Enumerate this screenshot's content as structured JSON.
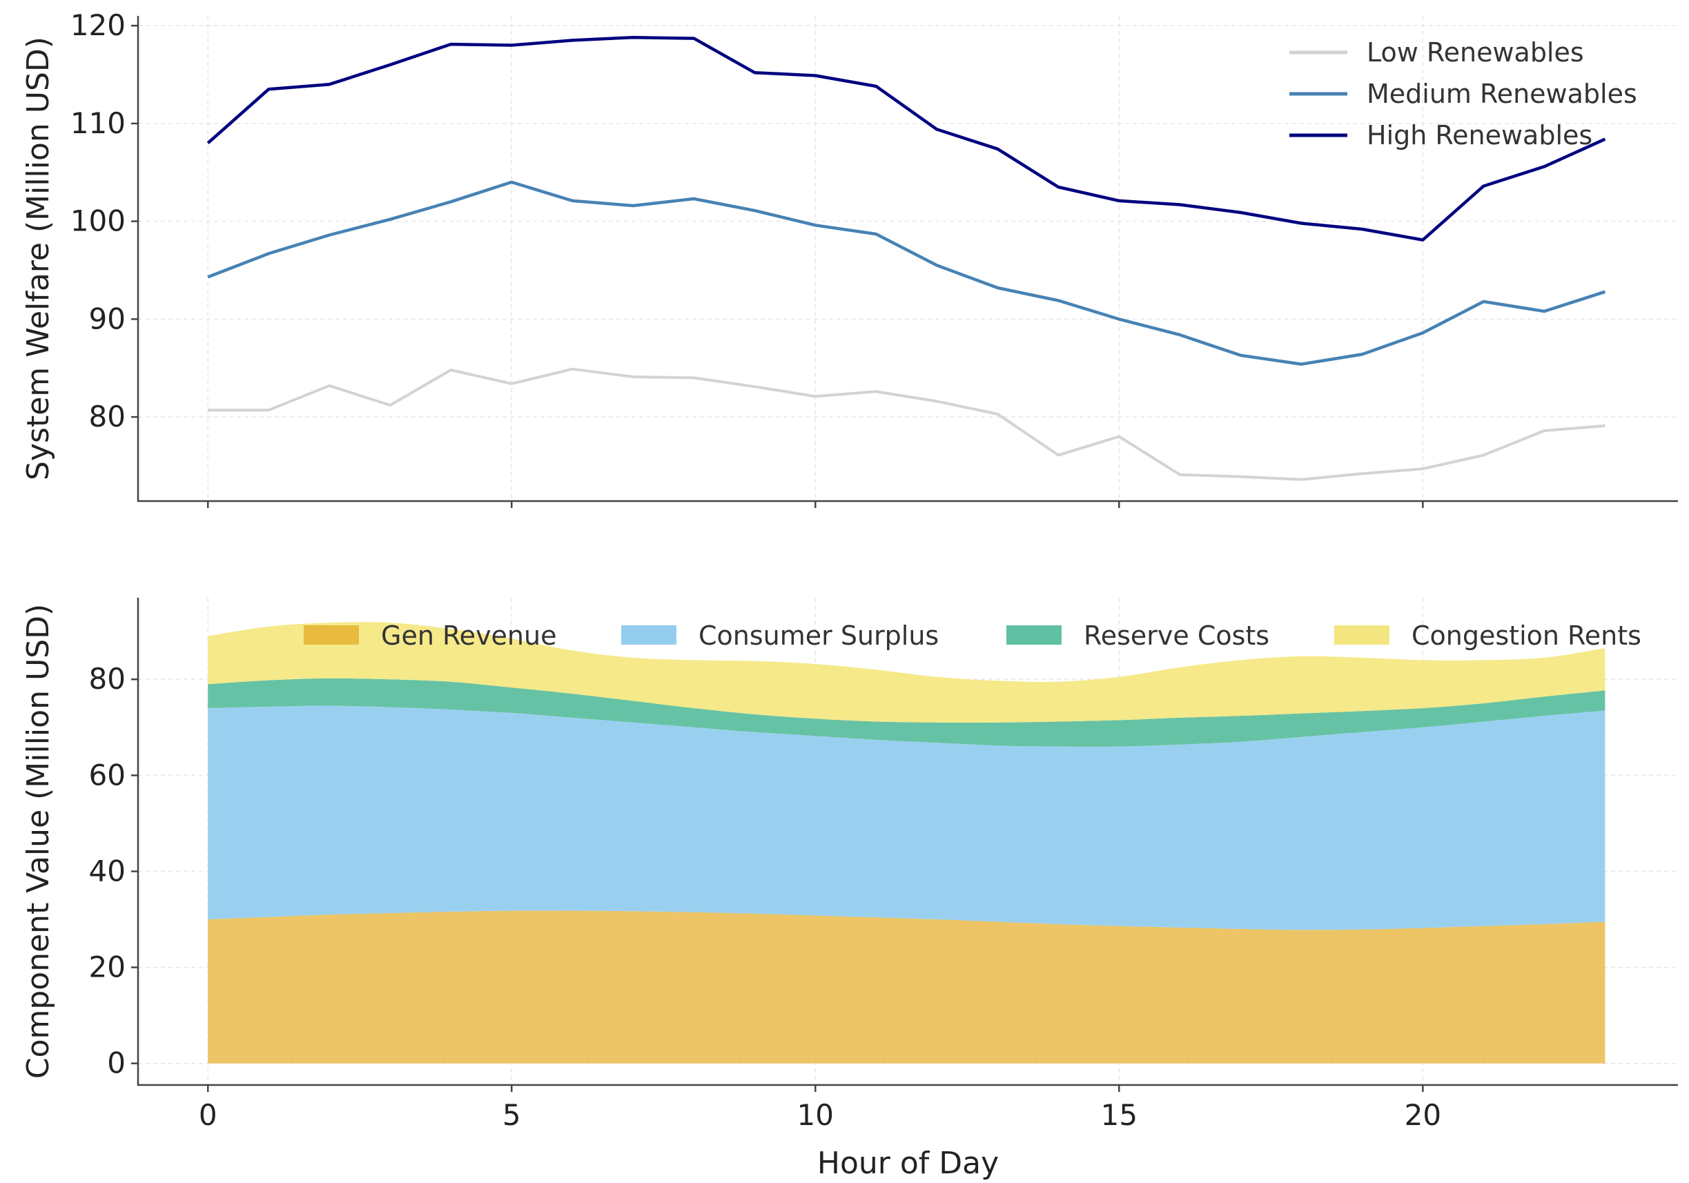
{
  "chart_data": [
    {
      "type": "line",
      "title": "",
      "xlabel": "",
      "ylabel": "System Welfare (Million USD)",
      "x": [
        0,
        1,
        2,
        3,
        4,
        5,
        6,
        7,
        8,
        9,
        10,
        11,
        12,
        13,
        14,
        15,
        16,
        17,
        18,
        19,
        20,
        21,
        22,
        23
      ],
      "xlim": [
        -1.15,
        24.2
      ],
      "ylim": [
        71.4,
        121
      ],
      "xticks": [
        0,
        5,
        10,
        15,
        20
      ],
      "yticks": [
        80,
        90,
        100,
        110,
        120
      ],
      "grid": true,
      "legend_position": "top-right",
      "series": [
        {
          "name": "Low Renewables",
          "color": "#d3d3d3",
          "values": [
            80.7,
            80.7,
            83.2,
            81.2,
            84.8,
            83.4,
            84.9,
            84.1,
            84.0,
            83.1,
            82.1,
            82.6,
            81.6,
            80.3,
            76.1,
            78.0,
            74.1,
            73.9,
            73.6,
            74.2,
            74.7,
            76.1,
            78.6,
            79.1
          ]
        },
        {
          "name": "Medium Renewables",
          "color": "#4682b4",
          "values": [
            94.3,
            96.7,
            98.6,
            100.2,
            102.0,
            104.0,
            102.1,
            101.6,
            102.3,
            101.1,
            99.6,
            98.7,
            95.5,
            93.2,
            91.9,
            90.0,
            88.4,
            86.3,
            85.4,
            86.4,
            88.6,
            91.8,
            90.8,
            92.8
          ]
        },
        {
          "name": "High Renewables",
          "color": "#000080",
          "values": [
            108.0,
            113.5,
            114.0,
            116.0,
            118.1,
            118.0,
            118.5,
            118.8,
            118.7,
            115.2,
            114.9,
            113.8,
            109.4,
            107.4,
            103.5,
            102.1,
            101.7,
            100.9,
            99.8,
            99.2,
            98.1,
            103.6,
            105.6,
            108.4
          ]
        }
      ]
    },
    {
      "type": "area",
      "stacked": true,
      "title": "",
      "xlabel": "Hour of Day",
      "ylabel": "Component Value (Million USD)",
      "x": [
        0,
        1,
        2,
        3,
        4,
        5,
        6,
        7,
        8,
        9,
        10,
        11,
        12,
        13,
        14,
        15,
        16,
        17,
        18,
        19,
        20,
        21,
        22,
        23
      ],
      "xlim": [
        -1.15,
        24.2
      ],
      "ylim": [
        -4.5,
        97
      ],
      "xticks": [
        0,
        5,
        10,
        15,
        20
      ],
      "yticks": [
        0,
        20,
        40,
        60,
        80
      ],
      "grid": true,
      "legend_position": "top",
      "series": [
        {
          "name": "Gen Revenue",
          "color": "#edc566",
          "legend_color": "#e8bb3f",
          "values": [
            30,
            30.5,
            31,
            31.3,
            31.6,
            31.8,
            31.8,
            31.7,
            31.5,
            31.2,
            30.8,
            30.4,
            30,
            29.5,
            29,
            28.6,
            28.3,
            28,
            27.8,
            27.9,
            28.2,
            28.6,
            29,
            29.5
          ]
        },
        {
          "name": "Consumer Surplus",
          "color": "#9ad0ef",
          "legend_color": "#93cdee",
          "values": [
            44,
            43.8,
            43.5,
            42.9,
            42.1,
            41.2,
            40.2,
            39.3,
            38.5,
            37.8,
            37.4,
            37,
            36.8,
            36.7,
            37,
            37.4,
            38.1,
            39,
            40.2,
            41.1,
            41.8,
            42.6,
            43.4,
            44
          ]
        },
        {
          "name": "Reserve Costs",
          "color": "#66c2a5",
          "legend_color": "#5fc0a2",
          "values": [
            5,
            5.5,
            5.7,
            5.8,
            5.8,
            5.3,
            5,
            4.5,
            4,
            3.7,
            3.6,
            3.8,
            4.2,
            4.8,
            5.2,
            5.5,
            5.6,
            5.4,
            4.9,
            4.4,
            4,
            3.8,
            4,
            4.2
          ]
        },
        {
          "name": "Congestion Rents",
          "color": "#f5e98a",
          "legend_color": "#f3e680",
          "values": [
            10,
            11.2,
            11.6,
            11.8,
            11,
            10.2,
            9,
            9,
            10,
            11.1,
            11.4,
            10.8,
            9.5,
            8.7,
            8.3,
            9,
            10.5,
            11.6,
            11.9,
            11.1,
            10,
            9,
            8.1,
            8.8
          ]
        }
      ]
    }
  ]
}
